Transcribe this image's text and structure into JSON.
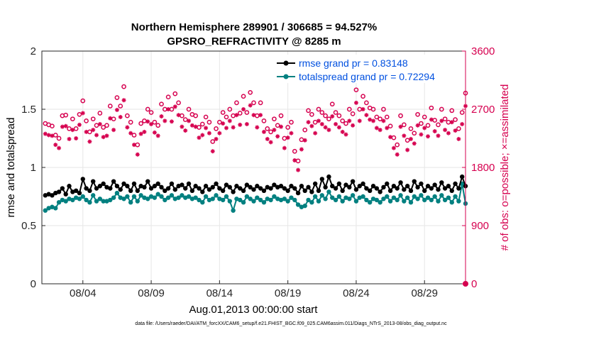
{
  "chart_data": {
    "type": "line",
    "title_line1": "Northern Hemisphere 289901 / 306685 = 94.527%",
    "title_line2": "GPSRO_REFRACTIVITY @ 8285 m",
    "xlabel": "Aug.01,2013 00:00:00 start",
    "ylabel_left": "rmse and totalspread",
    "ylabel_right": "# of obs: o=possible; ×=assimilated",
    "footnote": "data file: /Users/raeder/DAI/ATM_forcXX/CAM6_setup/f.e21.FHIST_BGC.f09_025.CAM6assim.011/Diags_NTrS_2013-08/obs_diag_output.nc",
    "xlim": [
      1,
      32
    ],
    "ylim_left": [
      0,
      2
    ],
    "ylim_right": [
      0,
      3600
    ],
    "x_ticks": [
      {
        "x": 4,
        "label": "08/04"
      },
      {
        "x": 9,
        "label": "08/09"
      },
      {
        "x": 14,
        "label": "08/14"
      },
      {
        "x": 19,
        "label": "08/19"
      },
      {
        "x": 24,
        "label": "08/24"
      },
      {
        "x": 29,
        "label": "08/29"
      }
    ],
    "y_ticks_left": [
      {
        "v": 0,
        "label": "0"
      },
      {
        "v": 0.5,
        "label": "0.5"
      },
      {
        "v": 1,
        "label": "1"
      },
      {
        "v": 1.5,
        "label": "1.5"
      },
      {
        "v": 2,
        "label": "2"
      }
    ],
    "y_ticks_right": [
      {
        "v": 0,
        "label": "0"
      },
      {
        "v": 900,
        "label": "900"
      },
      {
        "v": 1800,
        "label": "1800"
      },
      {
        "v": 2700,
        "label": "2700"
      },
      {
        "v": 3600,
        "label": "3600"
      }
    ],
    "x": [
      1.25,
      1.5,
      1.75,
      2.0,
      2.25,
      2.5,
      2.75,
      3.0,
      3.25,
      3.5,
      3.75,
      4.0,
      4.25,
      4.5,
      4.75,
      5.0,
      5.25,
      5.5,
      5.75,
      6.0,
      6.25,
      6.5,
      6.75,
      7.0,
      7.25,
      7.5,
      7.75,
      8.0,
      8.25,
      8.5,
      8.75,
      9.0,
      9.25,
      9.5,
      9.75,
      10.0,
      10.25,
      10.5,
      10.75,
      11.0,
      11.25,
      11.5,
      11.75,
      12.0,
      12.25,
      12.5,
      12.75,
      13.0,
      13.25,
      13.5,
      13.75,
      14.0,
      14.25,
      14.5,
      14.75,
      15.0,
      15.25,
      15.5,
      15.75,
      16.0,
      16.25,
      16.5,
      16.75,
      17.0,
      17.25,
      17.5,
      17.75,
      18.0,
      18.25,
      18.5,
      18.75,
      19.0,
      19.25,
      19.5,
      19.75,
      20.0,
      20.25,
      20.5,
      20.75,
      21.0,
      21.25,
      21.5,
      21.75,
      22.0,
      22.25,
      22.5,
      22.75,
      23.0,
      23.25,
      23.5,
      23.75,
      24.0,
      24.25,
      24.5,
      24.75,
      25.0,
      25.25,
      25.5,
      25.75,
      26.0,
      26.25,
      26.5,
      26.75,
      27.0,
      27.25,
      27.5,
      27.75,
      28.0,
      28.25,
      28.5,
      28.75,
      29.0,
      29.25,
      29.5,
      29.75,
      30.0,
      30.25,
      30.5,
      30.75,
      31.0,
      31.25,
      31.5,
      31.75,
      32.0
    ],
    "series": [
      {
        "name": "rmse",
        "legend": "rmse grand pr = 0.83148",
        "color": "#000000",
        "values": [
          0.76,
          0.77,
          0.76,
          0.78,
          0.79,
          0.82,
          0.77,
          0.84,
          0.79,
          0.8,
          0.78,
          0.9,
          0.82,
          0.8,
          0.88,
          0.82,
          0.84,
          0.86,
          0.83,
          0.82,
          0.88,
          0.84,
          0.81,
          0.86,
          0.84,
          0.8,
          0.86,
          0.8,
          0.84,
          0.83,
          0.88,
          0.82,
          0.84,
          0.86,
          0.83,
          0.8,
          0.82,
          0.86,
          0.81,
          0.84,
          0.85,
          0.82,
          0.86,
          0.8,
          0.84,
          0.82,
          0.79,
          0.84,
          0.81,
          0.83,
          0.86,
          0.82,
          0.8,
          0.85,
          0.83,
          0.79,
          0.84,
          0.82,
          0.8,
          0.85,
          0.83,
          0.81,
          0.84,
          0.82,
          0.8,
          0.83,
          0.82,
          0.85,
          0.83,
          0.84,
          0.82,
          0.8,
          0.84,
          0.82,
          0.78,
          0.84,
          0.8,
          0.83,
          0.79,
          0.86,
          0.8,
          0.9,
          0.83,
          0.92,
          0.84,
          0.82,
          0.86,
          0.8,
          0.85,
          0.83,
          0.88,
          0.81,
          0.84,
          0.86,
          0.82,
          0.8,
          0.84,
          0.82,
          0.79,
          0.83,
          0.86,
          0.8,
          0.84,
          0.82,
          0.87,
          0.81,
          0.84,
          0.8,
          0.88,
          0.83,
          0.86,
          0.8,
          0.84,
          0.82,
          0.85,
          0.81,
          0.87,
          0.82,
          0.84,
          0.8,
          0.86,
          0.82,
          0.92,
          0.84
        ],
        "marker": "dot"
      },
      {
        "name": "totalspread",
        "legend": "totalspread grand pr = 0.72294",
        "color": "#008080",
        "values": [
          0.63,
          0.65,
          0.66,
          0.65,
          0.7,
          0.72,
          0.71,
          0.73,
          0.72,
          0.74,
          0.73,
          0.75,
          0.72,
          0.7,
          0.76,
          0.71,
          0.73,
          0.71,
          0.71,
          0.72,
          0.74,
          0.78,
          0.74,
          0.73,
          0.75,
          0.7,
          0.75,
          0.71,
          0.76,
          0.74,
          0.73,
          0.75,
          0.74,
          0.77,
          0.75,
          0.72,
          0.74,
          0.76,
          0.73,
          0.74,
          0.76,
          0.74,
          0.75,
          0.73,
          0.74,
          0.72,
          0.7,
          0.75,
          0.72,
          0.73,
          0.76,
          0.73,
          0.72,
          0.75,
          0.71,
          0.63,
          0.73,
          0.72,
          0.7,
          0.75,
          0.73,
          0.71,
          0.74,
          0.72,
          0.7,
          0.73,
          0.72,
          0.75,
          0.73,
          0.72,
          0.73,
          0.71,
          0.74,
          0.72,
          0.68,
          0.66,
          0.67,
          0.72,
          0.7,
          0.75,
          0.71,
          0.76,
          0.73,
          0.79,
          0.74,
          0.72,
          0.75,
          0.71,
          0.74,
          0.73,
          0.76,
          0.71,
          0.74,
          0.75,
          0.72,
          0.7,
          0.73,
          0.72,
          0.7,
          0.73,
          0.75,
          0.71,
          0.74,
          0.72,
          0.76,
          0.71,
          0.74,
          0.7,
          0.75,
          0.73,
          0.76,
          0.72,
          0.74,
          0.72,
          0.75,
          0.71,
          0.76,
          0.72,
          0.74,
          0.7,
          0.75,
          0.71,
          0.86,
          0.69
        ],
        "marker": "dot"
      },
      {
        "name": "obs_possible",
        "axis": "right",
        "color": "#e0005a",
        "marker": "circle",
        "values": [
          2480,
          2460,
          2440,
          2300,
          2250,
          2600,
          2610,
          2400,
          2550,
          2400,
          2620,
          2830,
          2520,
          2350,
          2550,
          2450,
          2640,
          2420,
          2450,
          2750,
          2550,
          2880,
          2750,
          3050,
          2600,
          2500,
          2300,
          2150,
          2480,
          2520,
          2700,
          2650,
          2500,
          2450,
          2780,
          2700,
          2890,
          2700,
          2940,
          2800,
          2600,
          2540,
          2700,
          2620,
          2600,
          2420,
          2470,
          2580,
          2500,
          2200,
          2400,
          2500,
          2650,
          2580,
          2700,
          2600,
          2800,
          2640,
          2900,
          2650,
          2960,
          2800,
          2600,
          2800,
          2520,
          2400,
          2350,
          2550,
          2450,
          2600,
          2250,
          2420,
          2500,
          2050,
          1900,
          2230,
          2380,
          2680,
          2620,
          2500,
          2700,
          2650,
          2600,
          2550,
          2780,
          2650,
          2600,
          2520,
          2480,
          2700,
          2630,
          3000,
          2700,
          2900,
          2800,
          2720,
          2700,
          2580,
          2550,
          2700,
          2580,
          2440,
          2260,
          2150,
          2600,
          2460,
          2220,
          2400,
          2330,
          2620,
          2480,
          2580,
          2450,
          2720,
          2530,
          2460,
          2700,
          2550,
          2500,
          2680,
          2540,
          2400,
          2650,
          2950
        ]
      },
      {
        "name": "obs_assimilated",
        "axis": "right",
        "color": "#e0005a",
        "marker": "star",
        "values": [
          2320,
          2300,
          2290,
          2150,
          2100,
          2430,
          2440,
          2240,
          2380,
          2250,
          2460,
          2640,
          2350,
          2200,
          2380,
          2300,
          2470,
          2270,
          2290,
          2560,
          2380,
          2690,
          2580,
          2840,
          2420,
          2330,
          2150,
          2000,
          2320,
          2350,
          2510,
          2470,
          2340,
          2290,
          2590,
          2520,
          2700,
          2510,
          2740,
          2610,
          2430,
          2370,
          2520,
          2450,
          2430,
          2260,
          2300,
          2410,
          2330,
          2050,
          2240,
          2330,
          2480,
          2410,
          2520,
          2420,
          2610,
          2460,
          2700,
          2470,
          2760,
          2610,
          2420,
          2610,
          2350,
          2240,
          2190,
          2380,
          2280,
          2430,
          2100,
          2260,
          2330,
          1910,
          1760,
          2080,
          2220,
          2500,
          2440,
          2330,
          2520,
          2470,
          2420,
          2380,
          2590,
          2470,
          2420,
          2350,
          2310,
          2520,
          2450,
          2800,
          2520,
          2700,
          2610,
          2540,
          2520,
          2410,
          2380,
          2520,
          2410,
          2270,
          2100,
          2000,
          2430,
          2290,
          2070,
          2240,
          2170,
          2450,
          2310,
          2410,
          2280,
          2540,
          2360,
          2290,
          2520,
          2380,
          2330,
          2500,
          2370,
          2240,
          2470,
          2750
        ]
      }
    ]
  }
}
